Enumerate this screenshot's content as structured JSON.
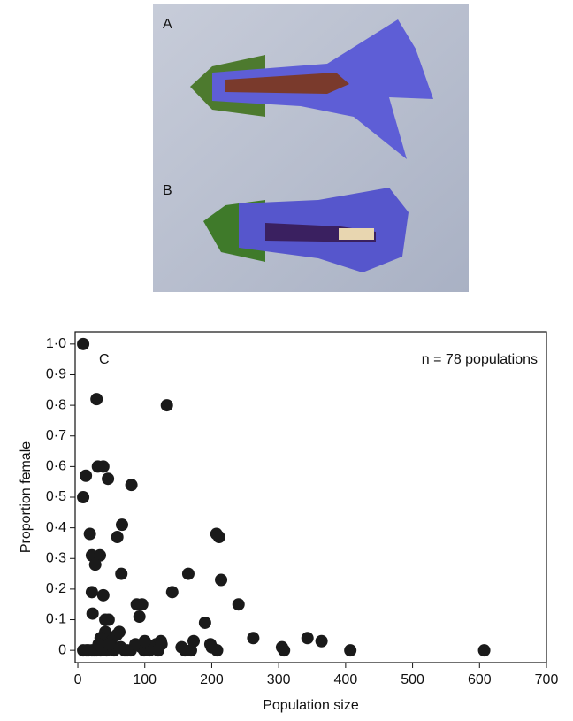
{
  "chart_data": {
    "type": "scatter",
    "panel_labels": [
      "A",
      "B",
      "C"
    ],
    "annotation": "n = 78 populations",
    "xlabel": "Population size",
    "ylabel": "Proportion female",
    "xlim": [
      -4,
      700
    ],
    "ylim": [
      -0.04,
      1.04
    ],
    "xticks": [
      0,
      100,
      200,
      300,
      400,
      500,
      600,
      700
    ],
    "yticks": [
      0,
      {
        "value": 0.1,
        "label": "0·1"
      },
      {
        "value": 0.2,
        "label": "0·2"
      },
      {
        "value": 0.3,
        "label": "0·3"
      },
      {
        "value": 0.4,
        "label": "0·4"
      },
      {
        "value": 0.5,
        "label": "0·5"
      },
      {
        "value": 0.6,
        "label": "0·6"
      },
      {
        "value": 0.7,
        "label": "0·7"
      },
      {
        "value": 0.8,
        "label": "0·8"
      },
      {
        "value": 0.9,
        "label": "0·9"
      },
      {
        "value": 1.0,
        "label": "1·0"
      }
    ],
    "color": "#1a1a1a",
    "x": [
      8,
      28,
      133,
      30,
      38,
      12,
      45,
      80,
      8,
      66,
      18,
      59,
      207,
      211,
      21,
      33,
      26,
      65,
      165,
      141,
      21,
      38,
      214,
      240,
      88,
      96,
      190,
      22,
      41,
      46,
      92,
      58,
      41,
      34,
      262,
      343,
      364,
      173,
      198,
      124,
      103,
      117,
      8,
      13,
      21,
      28,
      34,
      43,
      54,
      70,
      79,
      99,
      107,
      160,
      169,
      208,
      308,
      407,
      607,
      16,
      24,
      31,
      50,
      62,
      52,
      74,
      95,
      110,
      125,
      155,
      200,
      305,
      36,
      47,
      64,
      86,
      100,
      120
    ],
    "values": [
      1.0,
      0.82,
      0.8,
      0.6,
      0.6,
      0.57,
      0.56,
      0.54,
      0.5,
      0.41,
      0.38,
      0.37,
      0.38,
      0.37,
      0.31,
      0.31,
      0.28,
      0.25,
      0.25,
      0.19,
      0.19,
      0.18,
      0.23,
      0.15,
      0.15,
      0.15,
      0.09,
      0.12,
      0.1,
      0.1,
      0.11,
      0.05,
      0.06,
      0.04,
      0.04,
      0.04,
      0.03,
      0.03,
      0.02,
      0.03,
      0.02,
      0.02,
      0,
      0,
      0,
      0,
      0,
      0,
      0,
      0,
      0,
      0,
      0,
      0,
      0,
      0,
      0,
      0,
      0,
      0,
      0,
      0.02,
      0.03,
      0.06,
      0.01,
      0,
      0.01,
      0.01,
      0.02,
      0.01,
      0.01,
      0.01,
      0.01,
      0.02,
      0.01,
      0.02,
      0.03,
      0
    ]
  }
}
